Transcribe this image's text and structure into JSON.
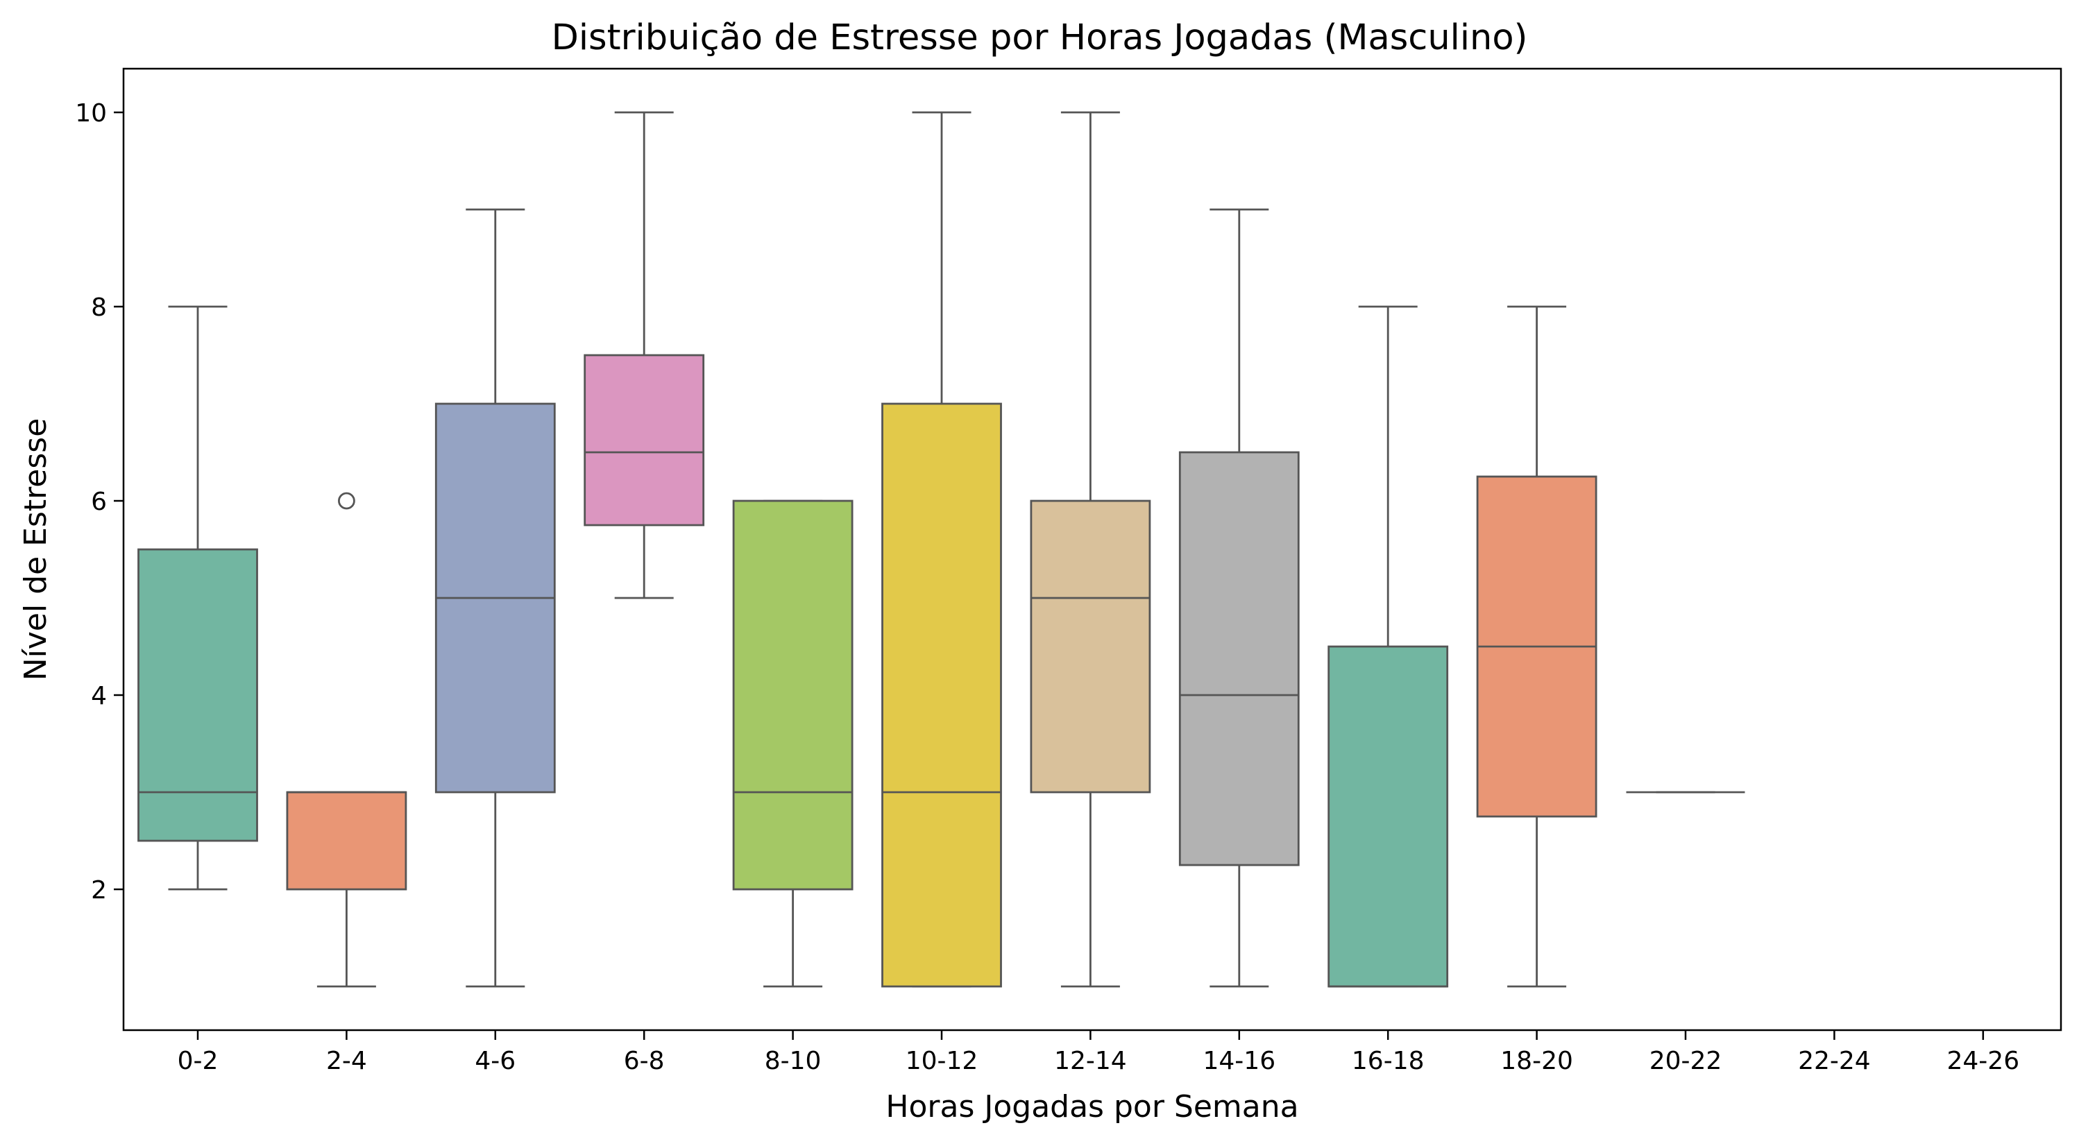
{
  "chart_data": {
    "type": "box",
    "title": "Distribuição de Estresse por Horas Jogadas (Masculino)",
    "xlabel": "Horas Jogadas por Semana",
    "ylabel": "Nível de Estresse",
    "categories": [
      "0-2",
      "2-4",
      "4-6",
      "6-8",
      "8-10",
      "10-12",
      "12-14",
      "14-16",
      "16-18",
      "18-20",
      "20-22",
      "22-24",
      "24-26"
    ],
    "yticks": [
      "2",
      "4",
      "6",
      "8",
      "10"
    ],
    "ylim": [
      0.55,
      10.45
    ],
    "grid": false,
    "boxes": [
      {
        "category": "0-2",
        "whisker_low": 2,
        "q1": 2.5,
        "median": 3,
        "q3": 5.5,
        "whisker_high": 8,
        "outliers": [],
        "color": "#72b6a1"
      },
      {
        "category": "2-4",
        "whisker_low": 1,
        "q1": 2,
        "median": 3,
        "q3": 3,
        "whisker_high": 3,
        "outliers": [
          6
        ],
        "color": "#e99675"
      },
      {
        "category": "4-6",
        "whisker_low": 1,
        "q1": 3,
        "median": 5,
        "q3": 7,
        "whisker_high": 9,
        "outliers": [],
        "color": "#95a3c3"
      },
      {
        "category": "6-8",
        "whisker_low": 5,
        "q1": 5.75,
        "median": 6.5,
        "q3": 7.5,
        "whisker_high": 10,
        "outliers": [],
        "color": "#db96c0"
      },
      {
        "category": "8-10",
        "whisker_low": 1,
        "q1": 2,
        "median": 3,
        "q3": 6,
        "whisker_high": 6,
        "outliers": [],
        "color": "#a4c865"
      },
      {
        "category": "10-12",
        "whisker_low": 1,
        "q1": 1,
        "median": 3,
        "q3": 7,
        "whisker_high": 10,
        "outliers": [],
        "color": "#e2c94a"
      },
      {
        "category": "12-14",
        "whisker_low": 1,
        "q1": 3,
        "median": 5,
        "q3": 6,
        "whisker_high": 10,
        "outliers": [],
        "color": "#d9c19b"
      },
      {
        "category": "14-16",
        "whisker_low": 1,
        "q1": 2.25,
        "median": 4,
        "q3": 6.5,
        "whisker_high": 9,
        "outliers": [],
        "color": "#b2b2b2"
      },
      {
        "category": "16-18",
        "whisker_low": 1,
        "q1": 1,
        "median": 1,
        "q3": 4.5,
        "whisker_high": 8,
        "outliers": [],
        "color": "#72b6a1"
      },
      {
        "category": "18-20",
        "whisker_low": 1,
        "q1": 2.75,
        "median": 4.5,
        "q3": 6.25,
        "whisker_high": 8,
        "outliers": [],
        "color": "#e99675"
      },
      {
        "category": "20-22",
        "whisker_low": 3,
        "q1": 3,
        "median": 3,
        "q3": 3,
        "whisker_high": 3,
        "outliers": [],
        "color": "#95a3c3"
      }
    ]
  },
  "colors": {
    "outline": "#555555",
    "axis": "#000000"
  }
}
